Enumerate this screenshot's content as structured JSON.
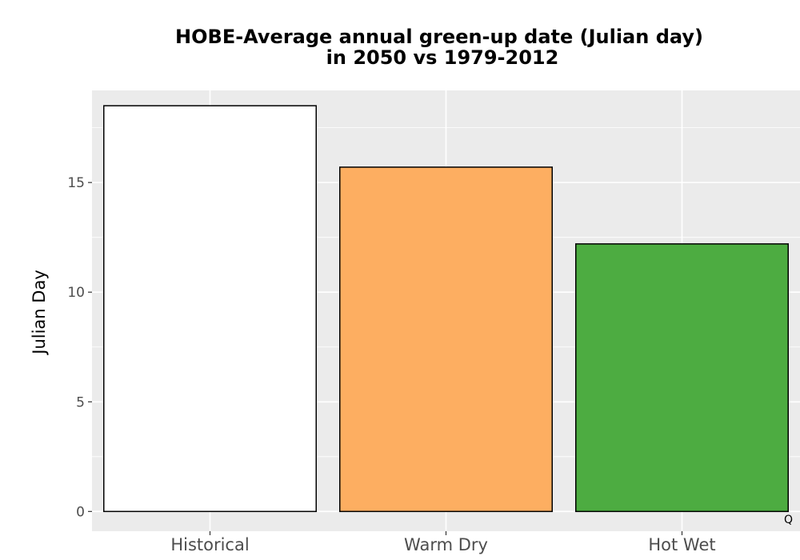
{
  "chart_data": {
    "type": "bar",
    "title": [
      "HOBE-Average annual green-up date (Julian day)",
      "in 2050 vs 1979-2012"
    ],
    "xlabel": "",
    "ylabel": "Julian Day",
    "categories": [
      "Historical",
      "Warm Dry",
      "Hot Wet"
    ],
    "values": [
      18.5,
      15.7,
      12.2
    ],
    "bar_colors": [
      "#ffffff",
      "#fdae61",
      "#4dac41"
    ],
    "bar_outline": "#000000",
    "ylim": [
      -0.9,
      19.2
    ],
    "yticks": [
      0,
      5,
      10,
      15
    ],
    "grid": true,
    "panel_background": "#ebebeb",
    "grid_color": "#ffffff",
    "legend": "none"
  },
  "corner_mark": "Q"
}
